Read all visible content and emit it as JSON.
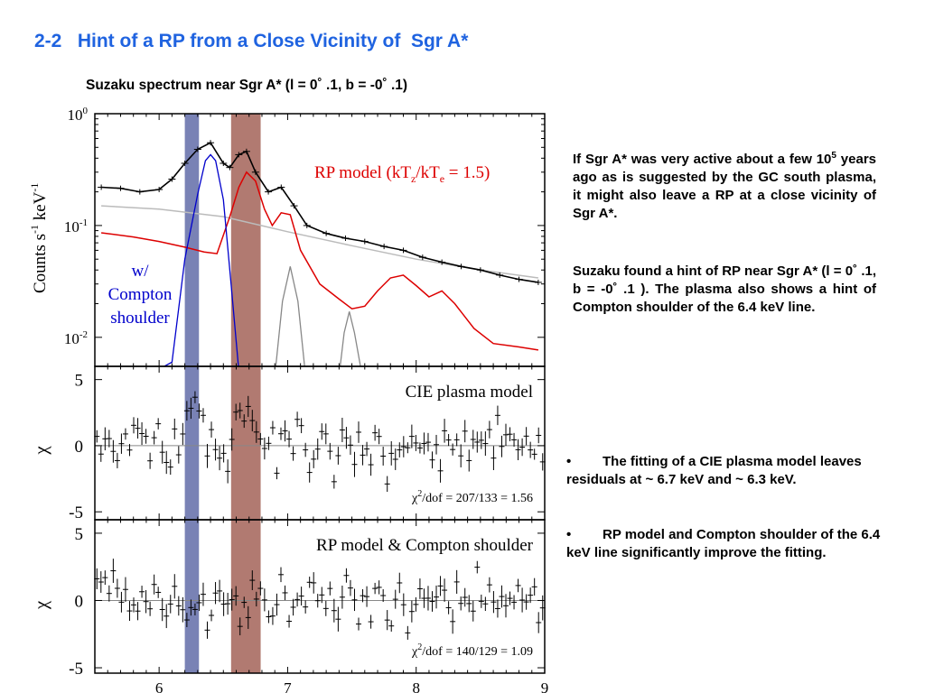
{
  "slide": {
    "title": "2-2   Hint of a RP from a Close Vicinity of  Sgr A*",
    "subtitle": "Suzaku spectrum near Sgr A* (l = 0˚ .1, b = -0˚ .1)",
    "paragraph1": {
      "before_sup": "If Sgr A* was very active about a few 10",
      "sup": "5",
      "after_sup": "  years ago as is suggested by the GC south plasma, it might also leave a RP at a close vicinity of  Sgr A*."
    },
    "paragraph2": "Suzaku found a hint of RP near Sgr A* (l = 0˚ .1, b = -0˚ .1 ). The plasma also shows a hint of Compton shoulder of the 6.4 keV line.",
    "bullets": [
      "The fitting of a CIE plasma model leaves residuals at ~ 6.7 keV and  ~ 6.3 keV.",
      "RP model and Compton shoulder of the 6.4 keV line significantly improve the fitting."
    ],
    "bullet_symbol": "•"
  },
  "chart_data": {
    "type": "line",
    "x_ticks": [
      "6",
      "7",
      "8",
      "9"
    ],
    "xlim": [
      5.5,
      9.0
    ],
    "colors": {
      "data": "#000000",
      "rp_model": "#dd0000",
      "gaussian": "#0000cc",
      "cie_bg": "#bbbbbb",
      "lines": "#888888",
      "band_blue": "#6a74ad",
      "band_red": "#a96b62"
    },
    "bands_keV": [
      [
        6.2,
        6.31
      ],
      [
        6.56,
        6.79
      ]
    ],
    "top": {
      "ylabel_parts": [
        "Counts s",
        "-1",
        " keV",
        "-1"
      ],
      "y_ticks": [
        {
          "base": "10",
          "exp": "0",
          "value": 1.0
        },
        {
          "base": "10",
          "exp": "-1",
          "value": 0.1
        },
        {
          "base": "10",
          "exp": "-2",
          "value": 0.01
        }
      ],
      "ylim": [
        0.0055,
        1.0
      ],
      "yscale": "log",
      "rp_label_parts": [
        "RP model (kT",
        "z",
        "/kT",
        "e",
        " = 1.5)"
      ],
      "compton_label": [
        "w/",
        "Compton",
        "shoulder"
      ],
      "data": {
        "x": [
          5.55,
          5.7,
          5.85,
          6.0,
          6.1,
          6.2,
          6.3,
          6.4,
          6.5,
          6.55,
          6.62,
          6.68,
          6.75,
          6.85,
          6.95,
          7.05,
          7.15,
          7.3,
          7.45,
          7.6,
          7.75,
          7.9,
          8.05,
          8.2,
          8.35,
          8.5,
          8.65,
          8.8,
          8.95
        ],
        "y": [
          0.22,
          0.215,
          0.2,
          0.21,
          0.26,
          0.36,
          0.48,
          0.55,
          0.36,
          0.33,
          0.43,
          0.46,
          0.3,
          0.2,
          0.22,
          0.15,
          0.1,
          0.085,
          0.077,
          0.072,
          0.065,
          0.06,
          0.052,
          0.047,
          0.043,
          0.04,
          0.036,
          0.033,
          0.031
        ]
      },
      "rp_model": {
        "x": [
          5.55,
          5.8,
          6.0,
          6.2,
          6.35,
          6.45,
          6.55,
          6.62,
          6.68,
          6.75,
          6.82,
          6.88,
          6.95,
          7.02,
          7.1,
          7.25,
          7.4,
          7.5,
          7.6,
          7.7,
          7.8,
          7.9,
          8.0,
          8.1,
          8.2,
          8.3,
          8.45,
          8.6,
          8.8,
          8.95
        ],
        "y": [
          0.086,
          0.079,
          0.072,
          0.064,
          0.058,
          0.056,
          0.12,
          0.22,
          0.3,
          0.25,
          0.14,
          0.1,
          0.13,
          0.125,
          0.06,
          0.03,
          0.022,
          0.018,
          0.019,
          0.026,
          0.034,
          0.036,
          0.029,
          0.023,
          0.026,
          0.02,
          0.012,
          0.0088,
          0.0082,
          0.0077
        ]
      },
      "gaussian_64": {
        "x": [
          5.6,
          5.9,
          6.1,
          6.2,
          6.3,
          6.36,
          6.4,
          6.44,
          6.5,
          6.56,
          6.62
        ],
        "y": [
          0.0035,
          0.0045,
          0.006,
          0.05,
          0.19,
          0.38,
          0.43,
          0.38,
          0.17,
          0.03,
          0.005
        ]
      },
      "cie_bg": {
        "x": [
          5.55,
          6.0,
          6.5,
          7.0,
          7.5,
          8.0,
          8.5,
          8.95
        ],
        "y": [
          0.15,
          0.14,
          0.12,
          0.088,
          0.066,
          0.05,
          0.04,
          0.034
        ]
      },
      "line_70": {
        "x": [
          6.9,
          6.96,
          7.02,
          7.08,
          7.14
        ],
        "y": [
          0.0045,
          0.021,
          0.043,
          0.021,
          0.0045
        ]
      },
      "line_75": {
        "x": [
          7.4,
          7.44,
          7.48,
          7.52,
          7.58
        ],
        "y": [
          0.0045,
          0.011,
          0.017,
          0.011,
          0.0045
        ]
      }
    },
    "residual_panels": [
      {
        "label": "CIE plasma model",
        "stat_parts": [
          "χ",
          "2",
          "/dof = 207/133 = 1.56"
        ],
        "ylabel": "χ",
        "y_ticks": [
          "5",
          "0",
          "-5"
        ],
        "ylim": [
          -5.6,
          6.0
        ]
      },
      {
        "label": "RP model & Compton shoulder",
        "stat_parts": [
          "χ",
          "2",
          "/dof = 140/129 = 1.09"
        ],
        "ylabel": "χ",
        "y_ticks": [
          "5",
          "0",
          "-5"
        ],
        "ylim": [
          -5.4,
          6.0
        ]
      }
    ]
  }
}
